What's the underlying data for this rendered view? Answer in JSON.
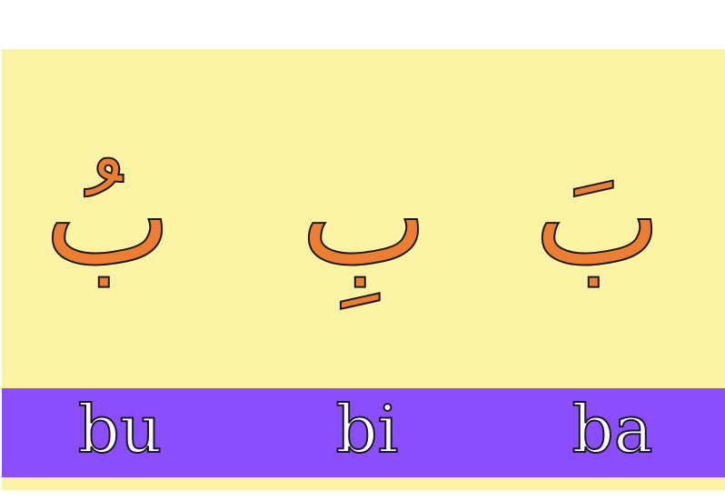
{
  "colors": {
    "card_background": "#fbf3a4",
    "letter_fill": "#ed7d31",
    "band_background": "#8a4dff",
    "syllable_fill": "#ffffff",
    "outline": "#1a1a1a"
  },
  "letters": [
    {
      "glyph": "بُ"
    },
    {
      "glyph": "بِ"
    },
    {
      "glyph": "بَ"
    }
  ],
  "syllables": [
    {
      "label": "bu"
    },
    {
      "label": "bi"
    },
    {
      "label": "ba"
    }
  ]
}
